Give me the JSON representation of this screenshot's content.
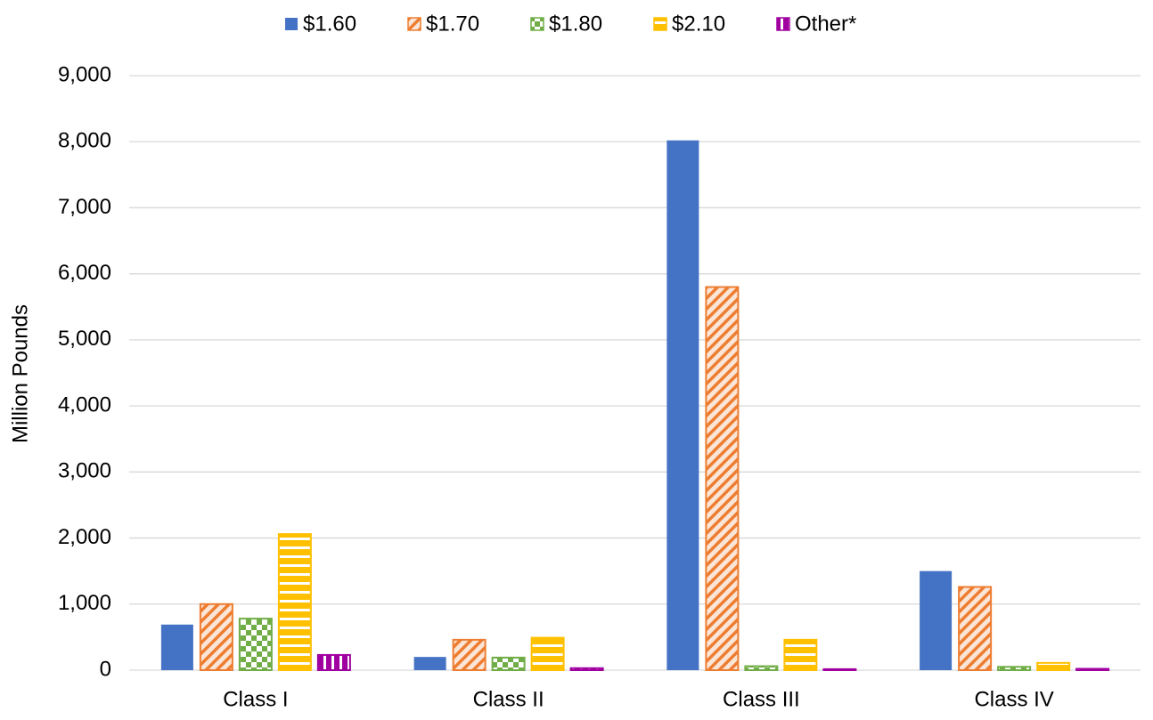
{
  "chart_data": {
    "type": "bar",
    "y_label": "Million Pounds",
    "categories": [
      "Class I",
      "Class II",
      "Class III",
      "Class IV"
    ],
    "series": [
      {
        "name": "$1.60",
        "color": "#4472c4",
        "values": [
          690,
          200,
          8020,
          1500
        ]
      },
      {
        "name": "$1.70",
        "color": "#ed7d31",
        "values": [
          1000,
          460,
          5800,
          1260
        ]
      },
      {
        "name": "$1.80",
        "color": "#70ad47",
        "values": [
          780,
          190,
          60,
          50
        ]
      },
      {
        "name": "$2.10",
        "color": "#ffc000",
        "values": [
          2060,
          490,
          460,
          110
        ]
      },
      {
        "name": "Other*",
        "color": "#a000a0",
        "values": [
          230,
          30,
          15,
          20
        ]
      }
    ],
    "ylim": [
      0,
      9000
    ],
    "yticks": [
      0,
      {
        "value": 1000,
        "label": "1,000"
      },
      {
        "value": 2000,
        "label": "2,000"
      },
      {
        "value": 3000,
        "label": "3,000"
      },
      {
        "value": 4000,
        "label": "4,000"
      },
      {
        "value": 5000,
        "label": "5,000"
      },
      {
        "value": 6000,
        "label": "6,000"
      },
      {
        "value": 7000,
        "label": "7,000"
      },
      {
        "value": 8000,
        "label": "8,000"
      },
      {
        "value": 9000,
        "label": "9,000"
      }
    ],
    "grid": true,
    "legend": "top"
  }
}
